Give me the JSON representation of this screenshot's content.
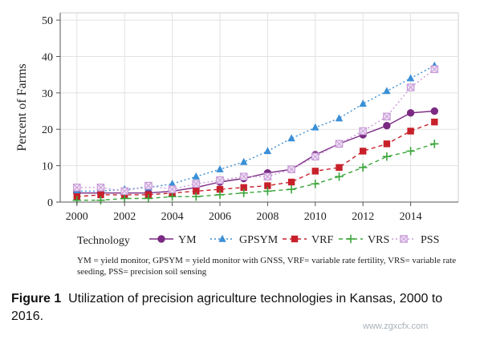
{
  "chart_data": {
    "type": "line",
    "ylabel": "Percent of Farms",
    "xlabel": "",
    "xlim": [
      1999.3,
      2016.0
    ],
    "ylim": [
      0,
      52
    ],
    "xticks": [
      2000,
      2002,
      2004,
      2006,
      2008,
      2010,
      2012,
      2014
    ],
    "yticks": [
      0,
      10,
      20,
      30,
      40,
      50
    ],
    "legend_title": "Technology",
    "legend_position": "bottom",
    "series": [
      {
        "name": "YM",
        "color": "#7b2a83",
        "marker": "circle",
        "dash": "solid",
        "x": [
          2000,
          2001,
          2002,
          2003,
          2004,
          2005,
          2006,
          2007,
          2008,
          2009,
          2010,
          2011,
          2012,
          2013,
          2014,
          2015
        ],
        "values": [
          2.5,
          2.5,
          2.5,
          2.5,
          3.0,
          4.0,
          5.5,
          6.5,
          8.0,
          9.0,
          13.0,
          16.0,
          18.5,
          21.0,
          24.5,
          25.0
        ]
      },
      {
        "name": "GPSYM",
        "color": "#3a8fd6",
        "marker": "triangle",
        "dash": "dotted",
        "x": [
          2000,
          2001,
          2002,
          2003,
          2004,
          2005,
          2006,
          2007,
          2008,
          2009,
          2010,
          2011,
          2012,
          2013,
          2014,
          2015
        ],
        "values": [
          3.0,
          3.0,
          3.5,
          4.0,
          5.0,
          7.0,
          9.0,
          11.0,
          14.0,
          17.5,
          20.5,
          23.0,
          27.0,
          30.5,
          34.0,
          37.5
        ]
      },
      {
        "name": "VRF",
        "color": "#c8202a",
        "marker": "square",
        "dash": "dashed",
        "x": [
          2000,
          2001,
          2002,
          2003,
          2004,
          2005,
          2006,
          2007,
          2008,
          2009,
          2010,
          2011,
          2012,
          2013,
          2014,
          2015
        ],
        "values": [
          1.5,
          2.0,
          2.0,
          2.0,
          2.5,
          3.0,
          3.5,
          4.0,
          4.5,
          5.5,
          8.5,
          9.5,
          14.0,
          16.0,
          19.5,
          22.0
        ]
      },
      {
        "name": "VRS",
        "color": "#3aa63a",
        "marker": "plus",
        "dash": "dashed",
        "x": [
          2000,
          2001,
          2002,
          2003,
          2004,
          2005,
          2006,
          2007,
          2008,
          2009,
          2010,
          2011,
          2012,
          2013,
          2014,
          2015
        ],
        "values": [
          0.5,
          0.5,
          1.0,
          1.0,
          1.5,
          1.5,
          2.0,
          2.5,
          3.0,
          3.5,
          5.0,
          7.0,
          9.5,
          12.5,
          14.0,
          16.0
        ]
      },
      {
        "name": "PSS",
        "color": "#c79ad6",
        "marker": "xsquare",
        "dash": "dotted",
        "x": [
          2000,
          2001,
          2002,
          2003,
          2004,
          2005,
          2006,
          2007,
          2008,
          2009,
          2010,
          2011,
          2012,
          2013,
          2014,
          2015
        ],
        "values": [
          4.0,
          4.0,
          3.0,
          4.5,
          3.5,
          5.0,
          6.0,
          7.0,
          7.0,
          9.0,
          12.5,
          16.0,
          19.5,
          23.5,
          31.5,
          36.5
        ]
      }
    ]
  },
  "note": "YM = yield monitor, GPSYM = yield monitor with GNSS, VRF= variable rate fertility, VRS= variable rate seeding, PSS= precision soil sensing",
  "caption": {
    "label": "Figure 1",
    "text": "Utilization of precision agriculture technologies in Kansas, 2000 to 2016."
  },
  "watermark": "www.zgxcfx.com"
}
